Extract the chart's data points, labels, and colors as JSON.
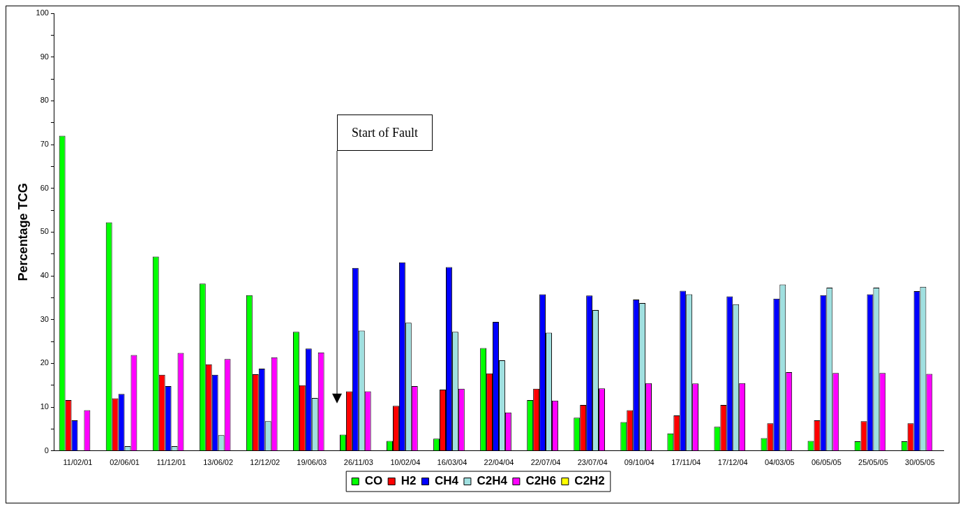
{
  "chart_data": {
    "type": "bar",
    "ylabel": "Percentage TCG",
    "categories": [
      "11/02/01",
      "02/06/01",
      "11/12/01",
      "13/06/02",
      "12/12/02",
      "19/06/03",
      "26/11/03",
      "10/02/04",
      "16/03/04",
      "22/04/04",
      "22/07/04",
      "23/07/04",
      "09/10/04",
      "17/11/04",
      "17/12/04",
      "04/03/05",
      "06/05/05",
      "25/05/05",
      "30/05/05"
    ],
    "series": [
      {
        "name": "CO",
        "color": "#00ff00",
        "values": [
          72,
          52.2,
          44.4,
          38.2,
          35.6,
          27.2,
          3.7,
          2.3,
          2.8,
          23.5,
          11.6,
          7.6,
          6.6,
          4,
          5.5,
          2.9,
          2.3,
          2.2,
          2.2
        ]
      },
      {
        "name": "H2",
        "color": "#ff0000",
        "values": [
          11.6,
          12,
          17.4,
          19.8,
          17.5,
          15,
          13.6,
          10.3,
          14,
          17.7,
          14.2,
          10.5,
          9.3,
          8.1,
          10.5,
          6.3,
          7,
          6.8,
          6.3
        ]
      },
      {
        "name": "CH4",
        "color": "#0000ff",
        "values": [
          7,
          13,
          14.8,
          17.4,
          18.8,
          23.4,
          41.8,
          43.1,
          42,
          29.5,
          35.8,
          35.5,
          34.6,
          36.6,
          35.3,
          34.8,
          35.6,
          35.8,
          36.5
        ]
      },
      {
        "name": "C2H4",
        "color": "#a0e0e0",
        "values": [
          0,
          1.1,
          1.1,
          3.6,
          6.8,
          12.1,
          27.5,
          29.3,
          27.2,
          20.7,
          27,
          32.2,
          33.8,
          35.8,
          33.5,
          38,
          37.3,
          37.3,
          37.5
        ]
      },
      {
        "name": "C2H6",
        "color": "#ff00ff",
        "values": [
          9.3,
          21.9,
          22.4,
          21,
          21.4,
          22.5,
          13.6,
          14.8,
          14.2,
          8.8,
          11.5,
          14.3,
          15.5,
          15.4,
          15.5,
          18,
          17.8,
          17.8,
          17.6
        ]
      },
      {
        "name": "C2H2",
        "color": "#ffff00",
        "values": [
          0,
          0,
          0,
          0,
          0,
          0,
          0,
          0,
          0,
          0,
          0,
          0,
          0,
          0,
          0,
          0,
          0,
          0,
          0
        ]
      }
    ],
    "ylim": [
      0,
      100
    ],
    "yticks": [
      0,
      {
        "value": 5,
        "label": null
      },
      10,
      {
        "value": 15,
        "label": null
      },
      20,
      {
        "value": 25,
        "label": null
      },
      30,
      {
        "value": 35,
        "label": null
      },
      40,
      {
        "value": 45,
        "label": null
      },
      50,
      {
        "value": 55,
        "label": null
      },
      60,
      {
        "value": 65,
        "label": null
      },
      70,
      {
        "value": 75,
        "label": null
      },
      80,
      {
        "value": 85,
        "label": null
      },
      90,
      {
        "value": 95,
        "label": null
      },
      100
    ],
    "annotations": [
      "Start of Fault"
    ],
    "legend": "bottom"
  }
}
